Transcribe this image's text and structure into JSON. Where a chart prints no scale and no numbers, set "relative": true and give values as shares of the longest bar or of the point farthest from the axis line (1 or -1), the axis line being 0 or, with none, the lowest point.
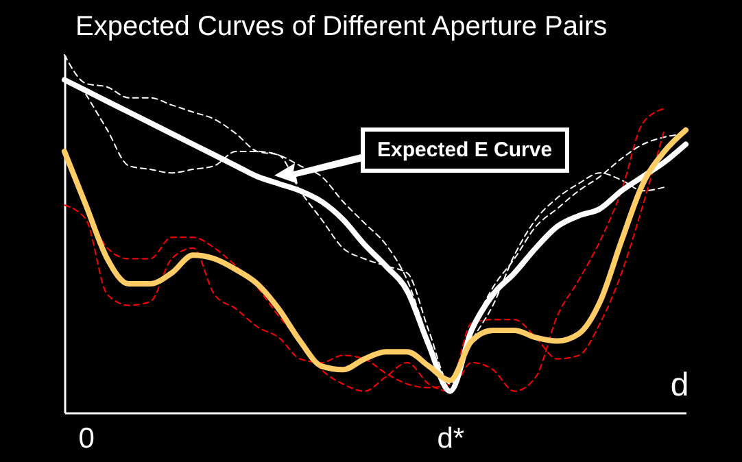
{
  "chart_data": {
    "type": "line",
    "title": "Expected Curves of Different Aperture Pairs",
    "xlabel": "d",
    "relative": true,
    "categories": [
      null,
      "0",
      null,
      null,
      null,
      null,
      null,
      null,
      null,
      null,
      null,
      null,
      null,
      null,
      null,
      null,
      null,
      null,
      "d*",
      null,
      null,
      null,
      null,
      null,
      null,
      null,
      null,
      null,
      null,
      null
    ],
    "annotations": [
      "Expected E Curve"
    ],
    "series": [
      {
        "color": "#ffffff",
        "line_style": "dashed",
        "values": [
          1.0,
          0.92,
          0.91,
          0.88,
          0.88,
          0.86,
          0.84,
          0.82,
          0.78,
          0.73,
          0.72,
          0.69,
          0.66,
          0.59,
          0.53,
          0.47,
          0.37,
          0.2,
          0.06,
          0.23,
          0.35,
          0.43,
          0.52,
          0.57,
          0.62,
          0.66,
          0.71,
          0.75,
          0.77,
          0.78
        ]
      },
      {
        "color": "#ffffff",
        "line_style": "dashed",
        "values": [
          null,
          0.89,
          0.79,
          0.69,
          0.68,
          0.67,
          0.68,
          0.69,
          0.73,
          0.73,
          0.72,
          0.62,
          0.54,
          0.46,
          0.43,
          0.41,
          0.39,
          0.23,
          0.08,
          0.2,
          0.3,
          0.44,
          0.54,
          0.6,
          0.64,
          0.67,
          0.65,
          0.62,
          0.63,
          null
        ]
      },
      {
        "color": "#ff0000",
        "line_style": "dashed",
        "values": [
          0.73,
          0.58,
          0.46,
          0.43,
          0.43,
          0.49,
          0.49,
          0.46,
          0.41,
          0.35,
          0.27,
          0.2,
          0.12,
          0.08,
          0.06,
          0.1,
          0.14,
          0.08,
          0.06,
          0.14,
          0.12,
          0.06,
          0.1,
          0.27,
          0.37,
          0.48,
          0.62,
          0.81,
          0.85,
          null
        ]
      },
      {
        "color": "#ff0000",
        "line_style": "dashed",
        "values": [
          0.58,
          0.54,
          0.33,
          0.3,
          0.31,
          0.43,
          0.46,
          0.33,
          0.29,
          0.24,
          0.21,
          0.15,
          0.14,
          0.16,
          0.15,
          0.11,
          0.08,
          0.07,
          0.08,
          0.25,
          0.26,
          0.26,
          0.21,
          0.15,
          0.16,
          0.25,
          0.39,
          0.58,
          0.79,
          null
        ]
      },
      {
        "color": "#ffffff",
        "line_style": "solid",
        "values": [
          0.93,
          0.9,
          0.87,
          0.84,
          0.81,
          0.78,
          0.75,
          0.72,
          0.69,
          0.66,
          0.64,
          0.62,
          0.59,
          0.54,
          0.47,
          0.41,
          0.34,
          0.19,
          0.06,
          0.23,
          0.33,
          0.39,
          0.46,
          0.52,
          0.55,
          0.57,
          0.62,
          0.66,
          0.7,
          0.75
        ]
      },
      {
        "color": "#ffcc66",
        "line_style": "solid",
        "values": [
          0.73,
          0.58,
          0.43,
          0.36,
          0.36,
          0.39,
          0.44,
          0.43,
          0.4,
          0.36,
          0.29,
          0.2,
          0.13,
          0.12,
          0.15,
          0.17,
          0.17,
          0.13,
          0.09,
          0.2,
          0.23,
          0.23,
          0.21,
          0.2,
          0.22,
          0.31,
          0.48,
          0.64,
          0.73,
          0.79
        ]
      }
    ]
  }
}
